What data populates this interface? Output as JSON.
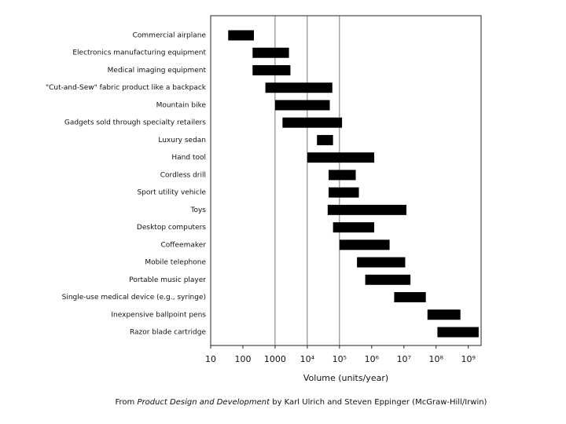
{
  "chart_data": {
    "type": "floating_bar",
    "categories": [
      "Commercial airplane",
      "Electronics manufacturing equipment",
      "Medical imaging equipment",
      "\"Cut-and-Sew\" fabric product like a backpack",
      "Mountain bike",
      "Gadgets sold through specialty retailers",
      "Luxury sedan",
      "Hand tool",
      "Cordless drill",
      "Sport utility vehicle",
      "Toys",
      "Desktop computers",
      "Coffeemaker",
      "Mobile telephone",
      "Portable music player",
      "Single-use medical device (e.g., syringe)",
      "Inexpensive ballpoint pens",
      "Razor blade cartridge"
    ],
    "starts": [
      35,
      200,
      200,
      500,
      1000,
      1700,
      20000,
      10000,
      46000,
      46000,
      43000,
      63000,
      100000,
      350000,
      630000,
      5000000,
      54000000,
      110000000
    ],
    "ends": [
      220,
      2700,
      3000,
      60000,
      50000,
      120000,
      63000,
      1200000,
      320000,
      400000,
      12000000,
      1200000,
      3600000,
      11000000,
      16000000,
      48000000,
      570000000,
      2100000000
    ],
    "color": "#000000",
    "log_x": true,
    "xlim": [
      10,
      2500000000
    ],
    "xticks": [
      10,
      100,
      1000,
      {
        "value": 10000,
        "label": "10⁴"
      },
      {
        "value": 100000,
        "label": "10⁵"
      },
      {
        "value": 1000000,
        "label": "10⁶"
      },
      {
        "value": 10000000,
        "label": "10⁷"
      },
      {
        "value": 100000000,
        "label": "10⁸"
      },
      {
        "value": 1000000000,
        "label": "10⁹"
      }
    ],
    "vlines": [
      1000,
      10000,
      100000
    ],
    "xlabel": "Volume (units/year)",
    "caption": {
      "prefix": "From",
      "title": "Product Design and Development",
      "suffix": "by Karl Ulrich and Steven Eppinger (McGraw-Hill/Irwin)"
    }
  }
}
